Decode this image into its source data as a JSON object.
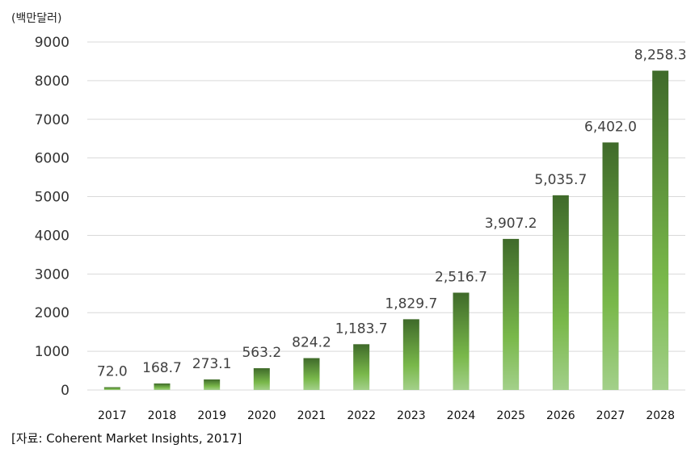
{
  "unit_label": "(백만달러)",
  "source": "[자료: Coherent Market Insights, 2017]",
  "colors": {
    "bar_top": "#3f6a2a",
    "bar_mid": "#79b84a",
    "bar_bottom": "#a3d08a",
    "grid": "#d9d9d9"
  },
  "chart_data": {
    "type": "bar",
    "categories": [
      "2017",
      "2018",
      "2019",
      "2020",
      "2021",
      "2022",
      "2023",
      "2024",
      "2025",
      "2026",
      "2027",
      "2028"
    ],
    "values": [
      72.0,
      168.7,
      273.1,
      563.2,
      824.2,
      1183.7,
      1829.7,
      2516.7,
      3907.2,
      5035.7,
      6402.0,
      8258.3
    ],
    "data_labels": [
      "72.0",
      "168.7",
      "273.1",
      "563.2",
      "824.2",
      "1,183.7",
      "1,829.7",
      "2,516.7",
      "3,907.2",
      "5,035.7",
      "6,402.0",
      "8,258.3"
    ],
    "ylim": [
      0,
      9000
    ],
    "yticks": [
      "0",
      "1000",
      "2000",
      "3000",
      "4000",
      "5000",
      "6000",
      "7000",
      "8000",
      "9000"
    ],
    "grid": true,
    "legend": "none"
  }
}
